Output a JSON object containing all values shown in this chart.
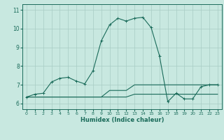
{
  "title": "",
  "xlabel": "Humidex (Indice chaleur)",
  "xlim": [
    -0.5,
    23.5
  ],
  "ylim": [
    5.7,
    11.3
  ],
  "xticks": [
    0,
    1,
    2,
    3,
    4,
    5,
    6,
    7,
    8,
    9,
    10,
    11,
    12,
    13,
    14,
    15,
    16,
    17,
    18,
    19,
    20,
    21,
    22,
    23
  ],
  "yticks": [
    6,
    7,
    8,
    9,
    10,
    11
  ],
  "bg_color": "#c8e8e0",
  "line_color": "#1a6b5a",
  "grid_color": "#a8ccc4",
  "line1_x": [
    0,
    1,
    2,
    3,
    4,
    5,
    6,
    7,
    8,
    9,
    10,
    11,
    12,
    13,
    14,
    15,
    16,
    17,
    18,
    19,
    20,
    21,
    22,
    23
  ],
  "line1_y": [
    6.35,
    6.5,
    6.55,
    7.15,
    7.35,
    7.4,
    7.2,
    7.05,
    7.75,
    9.35,
    10.2,
    10.55,
    10.4,
    10.55,
    10.6,
    10.05,
    8.55,
    6.1,
    6.55,
    6.25,
    6.25,
    6.9,
    7.0,
    7.0
  ],
  "line2_x": [
    0,
    1,
    2,
    3,
    4,
    5,
    6,
    7,
    8,
    9,
    10,
    11,
    12,
    13,
    14,
    15,
    16,
    17,
    18,
    19,
    20,
    21,
    22,
    23
  ],
  "line2_y": [
    6.35,
    6.35,
    6.35,
    6.35,
    6.35,
    6.35,
    6.35,
    6.35,
    6.35,
    6.35,
    6.35,
    6.35,
    6.35,
    6.5,
    6.5,
    6.5,
    6.5,
    6.5,
    6.5,
    6.5,
    6.5,
    6.5,
    6.5,
    6.5
  ],
  "line3_x": [
    0,
    1,
    2,
    3,
    4,
    5,
    6,
    7,
    8,
    9,
    10,
    11,
    12,
    13,
    14,
    15,
    16,
    17,
    18,
    19,
    20,
    21,
    22,
    23
  ],
  "line3_y": [
    6.35,
    6.35,
    6.35,
    6.35,
    6.35,
    6.35,
    6.35,
    6.35,
    6.35,
    6.35,
    6.7,
    6.7,
    6.7,
    7.0,
    7.0,
    7.0,
    7.0,
    7.0,
    7.0,
    7.0,
    7.0,
    7.0,
    7.0,
    7.0
  ],
  "xlabel_fontsize": 6,
  "tick_fontsize": 4.5,
  "ytick_fontsize": 5.5,
  "linewidth": 0.8,
  "marker": "+",
  "markersize": 3.0,
  "markeredgewidth": 0.7
}
